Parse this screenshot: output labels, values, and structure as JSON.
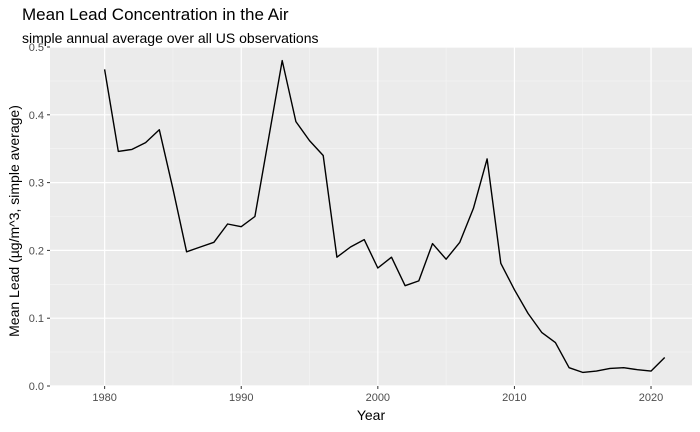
{
  "chart_data": {
    "type": "line",
    "title": "Mean Lead Concentration in the Air",
    "subtitle": "simple annual average over all US observations",
    "xlabel": "Year",
    "ylabel": "Mean Lead (µg/m^3, simple average)",
    "xlim": [
      1976,
      2023
    ],
    "ylim": [
      0,
      0.5
    ],
    "x_ticks": [
      1980,
      1990,
      2000,
      2010,
      2020
    ],
    "x_tick_labels": [
      "1980",
      "1990",
      "2000",
      "2010",
      "2020"
    ],
    "y_ticks": [
      0,
      0.1,
      0.2,
      0.3,
      0.4,
      0.5
    ],
    "y_tick_labels": [
      "0.0",
      "0.1",
      "0.2",
      "0.3",
      "0.4",
      "0.5"
    ],
    "grid": true,
    "legend": "none",
    "colors": {
      "panel_background": "#ebebeb",
      "grid_major": "#ffffff",
      "line": "#000000",
      "tick_label": "#4d4d4d"
    },
    "series": [
      {
        "x": [
          1980,
          1981,
          1982,
          1983,
          1984,
          1985,
          1986,
          1987,
          1988,
          1989,
          1990,
          1991,
          1992,
          1993,
          1994,
          1995,
          1996,
          1997,
          1998,
          1999,
          2000,
          2001,
          2002,
          2003,
          2004,
          2005,
          2006,
          2007,
          2008,
          2009,
          2010,
          2011,
          2012,
          2013,
          2014,
          2015,
          2016,
          2017,
          2018,
          2019,
          2020,
          2021
        ],
        "y": [
          0.467,
          0.346,
          0.349,
          0.359,
          0.378,
          0.291,
          0.198,
          0.205,
          0.212,
          0.239,
          0.235,
          0.25,
          0.365,
          0.48,
          0.39,
          0.362,
          0.34,
          0.19,
          0.205,
          0.216,
          0.174,
          0.19,
          0.148,
          0.155,
          0.21,
          0.187,
          0.212,
          0.262,
          0.335,
          0.181,
          0.142,
          0.107,
          0.079,
          0.064,
          0.027,
          0.02,
          0.022,
          0.026,
          0.027,
          0.024,
          0.022,
          0.042
        ]
      }
    ]
  }
}
